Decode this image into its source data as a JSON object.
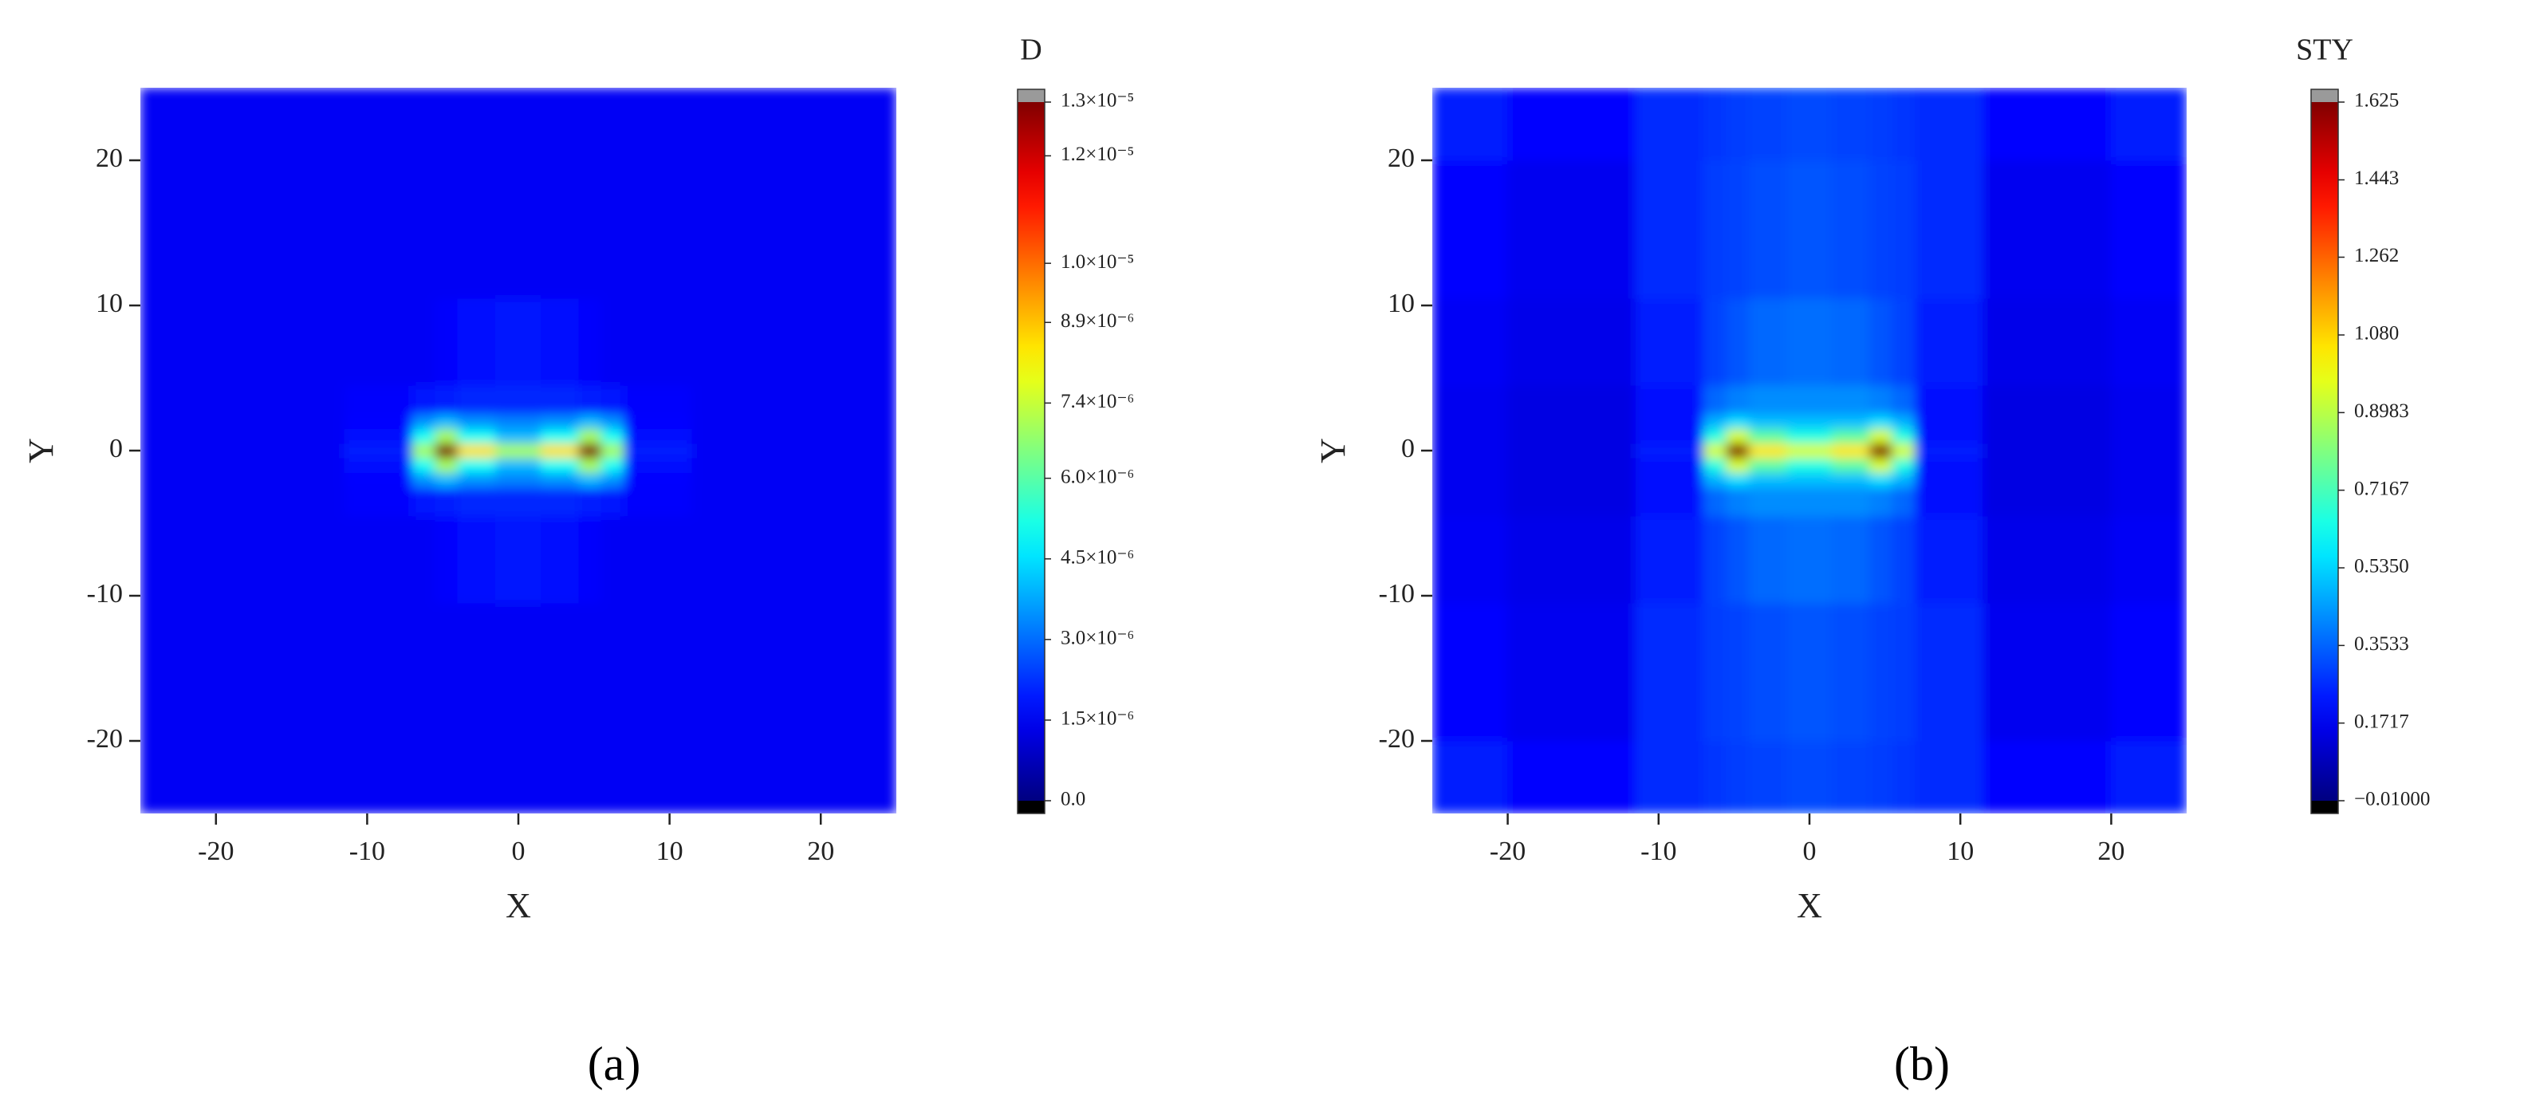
{
  "chart_data": [
    {
      "type": "contour",
      "label": "(a)",
      "title": "D",
      "xlabel": "X",
      "ylabel": "Y",
      "xlim": [
        -25,
        25
      ],
      "ylim": [
        -25,
        25
      ],
      "xticks": [
        -20,
        -10,
        0,
        10,
        20
      ],
      "yticks": [
        -20,
        -10,
        0,
        10,
        20
      ],
      "colormap": "jet",
      "under_color": "#000000",
      "over_color": "#9a9a9a",
      "zlim": [
        0,
        1.3e-05
      ],
      "zticks": [
        {
          "value": 0,
          "label": "0.0"
        },
        {
          "value": 1.5e-06,
          "label": "1.5×10⁻⁶"
        },
        {
          "value": 3e-06,
          "label": "3.0×10⁻⁶"
        },
        {
          "value": 4.5e-06,
          "label": "4.5×10⁻⁶"
        },
        {
          "value": 6e-06,
          "label": "6.0×10⁻⁶"
        },
        {
          "value": 7.4e-06,
          "label": "7.4×10⁻⁶"
        },
        {
          "value": 8.9e-06,
          "label": "8.9×10⁻⁶"
        },
        {
          "value": 1e-05,
          "label": "1.0×10⁻⁵"
        },
        {
          "value": 1.2e-05,
          "label": "1.2×10⁻⁵"
        },
        {
          "value": 1.3e-05,
          "label": "1.3×10⁻⁵"
        }
      ],
      "x": [
        -25,
        -15,
        -8,
        -6,
        -5,
        -3,
        0,
        3,
        5,
        6,
        8,
        15,
        25
      ],
      "y": [
        -25,
        -15,
        -6,
        -3,
        -2,
        -1,
        0,
        1,
        2,
        3,
        6,
        15,
        25
      ],
      "z": [
        [
          1.5e-06,
          1.5e-06,
          1.5e-06,
          1.5e-06,
          1.5e-06,
          1.5e-06,
          1.5e-06,
          1.5e-06,
          1.5e-06,
          1.5e-06,
          1.5e-06,
          1.5e-06,
          1.5e-06
        ],
        [
          1.5e-06,
          1.5e-06,
          1.5e-06,
          1.5e-06,
          1.5e-06,
          1.5e-06,
          1.5e-06,
          1.5e-06,
          1.5e-06,
          1.5e-06,
          1.5e-06,
          1.5e-06,
          1.5e-06
        ],
        [
          1.5e-06,
          1.5e-06,
          1.5e-06,
          1.5e-06,
          1.6e-06,
          1.8e-06,
          1.9e-06,
          1.8e-06,
          1.6e-06,
          1.5e-06,
          1.5e-06,
          1.5e-06,
          1.5e-06
        ],
        [
          1.5e-06,
          1.5e-06,
          1.6e-06,
          1.9e-06,
          2e-06,
          2.1e-06,
          2.1e-06,
          2.1e-06,
          2e-06,
          1.9e-06,
          1.6e-06,
          1.5e-06,
          1.5e-06
        ],
        [
          1.5e-06,
          1.5e-06,
          1.7e-06,
          3.5e-06,
          4e-06,
          3.5e-06,
          3.3e-06,
          3.5e-06,
          4e-06,
          3.5e-06,
          1.7e-06,
          1.5e-06,
          1.5e-06
        ],
        [
          1.5e-06,
          1.5e-06,
          1.8e-06,
          5e-06,
          7e-06,
          5e-06,
          4e-06,
          5e-06,
          7e-06,
          5e-06,
          1.8e-06,
          1.5e-06,
          1.5e-06
        ],
        [
          1.5e-06,
          1.5e-06,
          2e-06,
          7e-06,
          1.3e-05,
          8.5e-06,
          7e-06,
          8.5e-06,
          1.3e-05,
          7e-06,
          2e-06,
          1.5e-06,
          1.5e-06
        ],
        [
          1.5e-06,
          1.5e-06,
          1.8e-06,
          5e-06,
          7e-06,
          5e-06,
          4e-06,
          5e-06,
          7e-06,
          5e-06,
          1.8e-06,
          1.5e-06,
          1.5e-06
        ],
        [
          1.5e-06,
          1.5e-06,
          1.7e-06,
          3.5e-06,
          4e-06,
          3.5e-06,
          3.3e-06,
          3.5e-06,
          4e-06,
          3.5e-06,
          1.7e-06,
          1.5e-06,
          1.5e-06
        ],
        [
          1.5e-06,
          1.5e-06,
          1.6e-06,
          1.9e-06,
          2e-06,
          2.1e-06,
          2.1e-06,
          2.1e-06,
          2e-06,
          1.9e-06,
          1.6e-06,
          1.5e-06,
          1.5e-06
        ],
        [
          1.5e-06,
          1.5e-06,
          1.5e-06,
          1.5e-06,
          1.6e-06,
          1.8e-06,
          1.9e-06,
          1.8e-06,
          1.6e-06,
          1.5e-06,
          1.5e-06,
          1.5e-06,
          1.5e-06
        ],
        [
          1.5e-06,
          1.5e-06,
          1.5e-06,
          1.5e-06,
          1.5e-06,
          1.5e-06,
          1.5e-06,
          1.5e-06,
          1.5e-06,
          1.5e-06,
          1.5e-06,
          1.5e-06,
          1.5e-06
        ],
        [
          1.5e-06,
          1.5e-06,
          1.5e-06,
          1.5e-06,
          1.5e-06,
          1.5e-06,
          1.5e-06,
          1.5e-06,
          1.5e-06,
          1.5e-06,
          1.5e-06,
          1.5e-06,
          1.5e-06
        ]
      ]
    },
    {
      "type": "contour",
      "label": "(b)",
      "title": "STY",
      "xlabel": "X",
      "ylabel": "Y",
      "xlim": [
        -25,
        25
      ],
      "ylim": [
        -25,
        25
      ],
      "xticks": [
        -20,
        -10,
        0,
        10,
        20
      ],
      "yticks": [
        -20,
        -10,
        0,
        10,
        20
      ],
      "colormap": "jet",
      "under_color": "#000000",
      "over_color": "#9a9a9a",
      "zlim": [
        -0.01,
        1.625
      ],
      "zticks": [
        {
          "value": -0.01,
          "label": "−0.01000"
        },
        0.1717,
        0.3533,
        {
          "value": 0.535,
          "label": "0.5350"
        },
        0.7167,
        0.8983,
        {
          "value": 1.08,
          "label": "1.080"
        },
        1.262,
        1.443,
        1.625
      ],
      "x": [
        -25,
        -15,
        -8,
        -6,
        -5,
        -3,
        0,
        3,
        5,
        6,
        8,
        15,
        25
      ],
      "y": [
        -25,
        -15,
        -6,
        -3,
        -2,
        -1,
        0,
        1,
        2,
        3,
        6,
        15,
        25
      ],
      "z": [
        [
          0.24,
          0.2,
          0.26,
          0.28,
          0.29,
          0.3,
          0.31,
          0.3,
          0.29,
          0.28,
          0.26,
          0.2,
          0.24
        ],
        [
          0.2,
          0.17,
          0.26,
          0.29,
          0.3,
          0.32,
          0.33,
          0.32,
          0.3,
          0.29,
          0.26,
          0.17,
          0.2
        ],
        [
          0.18,
          0.16,
          0.24,
          0.3,
          0.33,
          0.36,
          0.37,
          0.36,
          0.33,
          0.3,
          0.24,
          0.16,
          0.18
        ],
        [
          0.17,
          0.15,
          0.22,
          0.36,
          0.4,
          0.42,
          0.42,
          0.42,
          0.4,
          0.36,
          0.22,
          0.15,
          0.17
        ],
        [
          0.17,
          0.15,
          0.22,
          0.48,
          0.55,
          0.5,
          0.5,
          0.5,
          0.55,
          0.48,
          0.22,
          0.15,
          0.17
        ],
        [
          0.17,
          0.15,
          0.22,
          0.65,
          0.95,
          0.75,
          0.65,
          0.75,
          0.95,
          0.65,
          0.22,
          0.15,
          0.17
        ],
        [
          0.17,
          0.15,
          0.24,
          0.95,
          1.62,
          1.05,
          0.95,
          1.05,
          1.62,
          0.95,
          0.24,
          0.15,
          0.17
        ],
        [
          0.17,
          0.15,
          0.22,
          0.65,
          0.95,
          0.75,
          0.65,
          0.75,
          0.95,
          0.65,
          0.22,
          0.15,
          0.17
        ],
        [
          0.17,
          0.15,
          0.22,
          0.48,
          0.55,
          0.5,
          0.5,
          0.5,
          0.55,
          0.48,
          0.22,
          0.15,
          0.17
        ],
        [
          0.17,
          0.15,
          0.22,
          0.36,
          0.4,
          0.42,
          0.42,
          0.42,
          0.4,
          0.36,
          0.22,
          0.15,
          0.17
        ],
        [
          0.18,
          0.16,
          0.24,
          0.3,
          0.33,
          0.36,
          0.37,
          0.36,
          0.33,
          0.3,
          0.24,
          0.16,
          0.18
        ],
        [
          0.2,
          0.17,
          0.26,
          0.29,
          0.3,
          0.32,
          0.33,
          0.32,
          0.3,
          0.29,
          0.26,
          0.17,
          0.2
        ],
        [
          0.24,
          0.2,
          0.26,
          0.28,
          0.29,
          0.3,
          0.31,
          0.3,
          0.29,
          0.28,
          0.26,
          0.2,
          0.24
        ]
      ]
    }
  ]
}
